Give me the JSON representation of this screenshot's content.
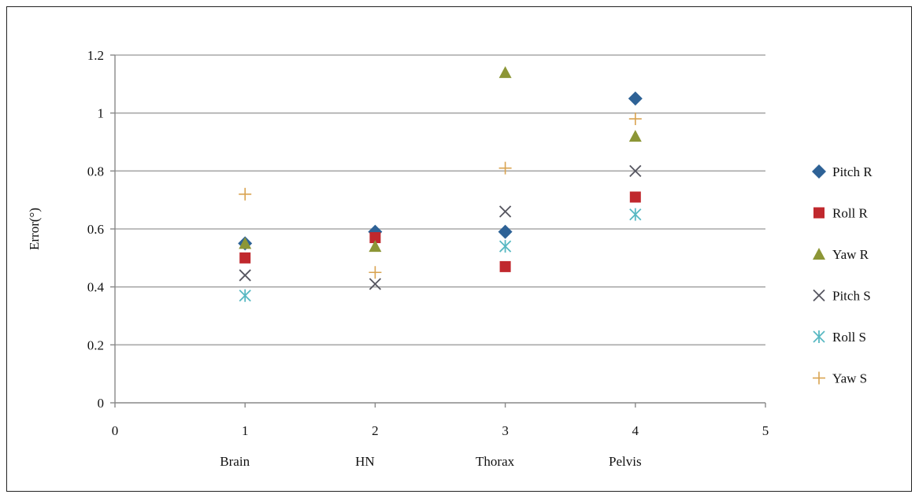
{
  "chart_data": {
    "type": "scatter",
    "ylabel": "Error(°)",
    "xlim": [
      0,
      5
    ],
    "ylim": [
      0,
      1.2
    ],
    "x_ticks": [
      0,
      1,
      2,
      3,
      4,
      5
    ],
    "y_ticks": [
      0,
      0.2,
      0.4,
      0.6,
      0.8,
      1,
      1.2
    ],
    "y_tick_labels": [
      "0",
      "0.2",
      "0.4",
      "0.6",
      "0.8",
      "1",
      "1.2"
    ],
    "categories": [
      {
        "x": 1,
        "label": "Brain"
      },
      {
        "x": 2,
        "label": "HN"
      },
      {
        "x": 3,
        "label": "Thorax"
      },
      {
        "x": 4,
        "label": "Pelvis"
      }
    ],
    "grid": "horizontal",
    "legend_position": "right",
    "series": [
      {
        "name": "Pitch R",
        "marker": "diamond",
        "color": "#2E6296",
        "points": [
          {
            "x": 1,
            "y": 0.55
          },
          {
            "x": 2,
            "y": 0.59
          },
          {
            "x": 3,
            "y": 0.59
          },
          {
            "x": 4,
            "y": 1.05
          }
        ]
      },
      {
        "name": "Roll R",
        "marker": "square",
        "color": "#C0282D",
        "points": [
          {
            "x": 1,
            "y": 0.5
          },
          {
            "x": 2,
            "y": 0.57
          },
          {
            "x": 3,
            "y": 0.47
          },
          {
            "x": 4,
            "y": 0.71
          }
        ]
      },
      {
        "name": "Yaw R",
        "marker": "triangle",
        "color": "#8C9636",
        "points": [
          {
            "x": 1,
            "y": 0.55
          },
          {
            "x": 2,
            "y": 0.54
          },
          {
            "x": 3,
            "y": 1.14
          },
          {
            "x": 4,
            "y": 0.92
          }
        ]
      },
      {
        "name": "Pitch S",
        "marker": "x",
        "color": "#55555F",
        "points": [
          {
            "x": 1,
            "y": 0.44
          },
          {
            "x": 2,
            "y": 0.41
          },
          {
            "x": 3,
            "y": 0.66
          },
          {
            "x": 4,
            "y": 0.8
          }
        ]
      },
      {
        "name": "Roll S",
        "marker": "asterisk",
        "color": "#58B8C2",
        "points": [
          {
            "x": 1,
            "y": 0.37
          },
          {
            "x": 3,
            "y": 0.54
          },
          {
            "x": 4,
            "y": 0.65
          }
        ]
      },
      {
        "name": "Yaw S",
        "marker": "plus",
        "color": "#D9A350",
        "points": [
          {
            "x": 1,
            "y": 0.72
          },
          {
            "x": 2,
            "y": 0.45
          },
          {
            "x": 3,
            "y": 0.81
          },
          {
            "x": 4,
            "y": 0.98
          }
        ]
      }
    ]
  }
}
